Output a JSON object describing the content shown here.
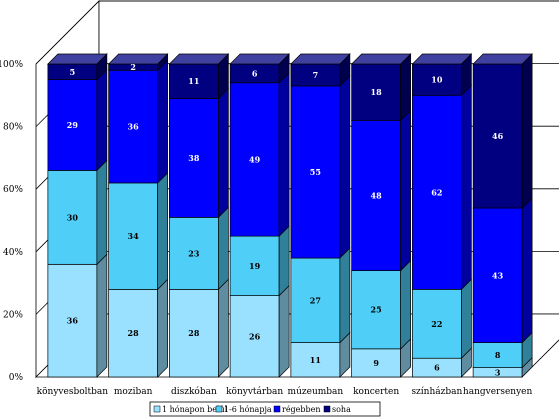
{
  "chart_data": {
    "type": "bar",
    "stacked": "percent",
    "categories": [
      "könyvesboltban",
      "moziban",
      "diszkóban",
      "könyvtárban",
      "múzeumban",
      "koncerten",
      "színházban",
      "hangversenyen"
    ],
    "series": [
      {
        "name": "1 hónapon belül",
        "color": "#99E1FF",
        "values": [
          36,
          28,
          28,
          26,
          11,
          9,
          6,
          3
        ]
      },
      {
        "name": "1-6 hónapja",
        "color": "#4FCFF7",
        "values": [
          30,
          34,
          23,
          19,
          27,
          25,
          22,
          8
        ]
      },
      {
        "name": "régebben",
        "color": "#0000FF",
        "values": [
          29,
          36,
          38,
          49,
          55,
          48,
          62,
          43
        ]
      },
      {
        "name": "soha",
        "color": "#000080",
        "values": [
          5,
          2,
          11,
          6,
          7,
          18,
          10,
          46
        ]
      }
    ],
    "ylim": [
      0,
      100
    ],
    "y_ticks": [
      "0%",
      "20%",
      "40%",
      "60%",
      "80%",
      "100%"
    ],
    "grid": true,
    "legend": "bottom",
    "three_d": true
  }
}
